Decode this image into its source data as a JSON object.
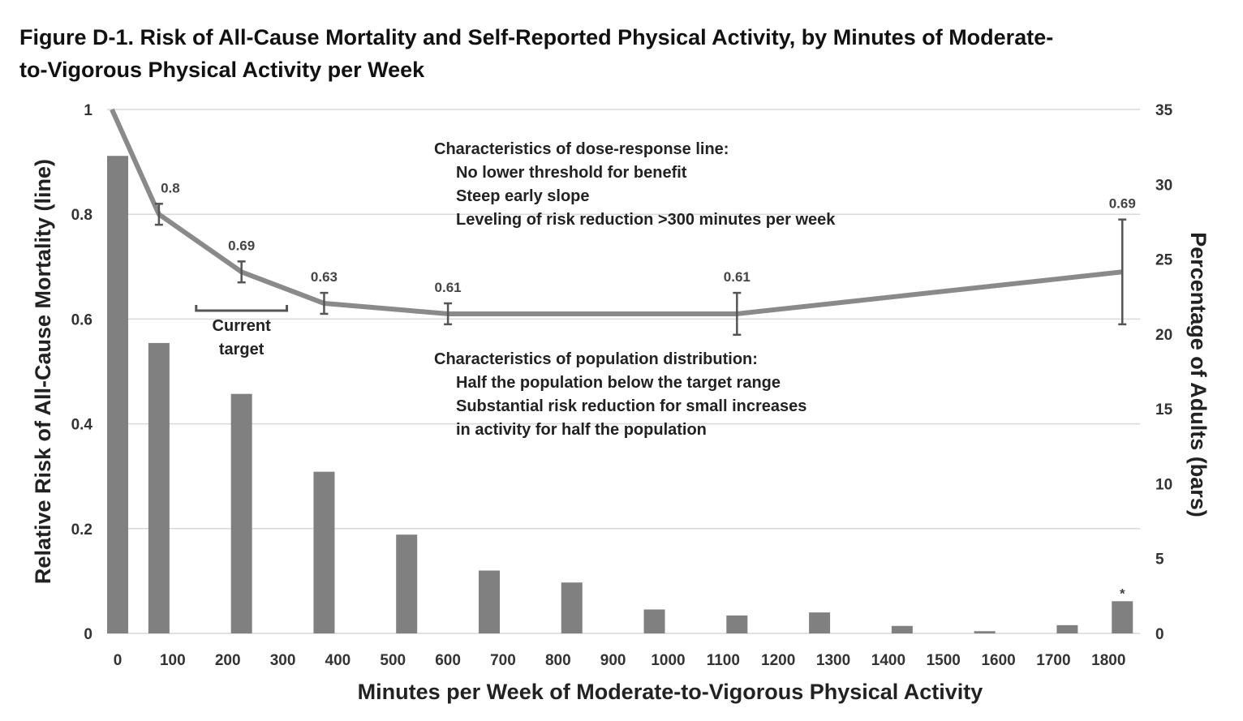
{
  "title_line1": "Figure D-1. Risk of All-Cause Mortality and Self-Reported Physical Activity, by Minutes of Moderate-",
  "title_line2": "to-Vigorous Physical Activity per Week",
  "chart_data": {
    "type": "bar+line",
    "x_ticks": [
      "0",
      "100",
      "200",
      "300",
      "400",
      "500",
      "600",
      "700",
      "800",
      "900",
      "1000",
      "1100",
      "1200",
      "1300",
      "1400",
      "1500",
      "1600",
      "1700",
      "1800"
    ],
    "xlabel": "Minutes per Week of Moderate-to-Vigorous Physical Activity",
    "ylabel_left": "Relative Risk of All-Cause Mortality (line)",
    "ylabel_right": "Percentage of Adults (bars)",
    "ylim_left": [
      0,
      1
    ],
    "yticks_left": [
      "0",
      "0.2",
      "0.4",
      "0.6",
      "0.8",
      "1"
    ],
    "ylim_right": [
      0,
      35
    ],
    "yticks_right": [
      "0",
      "5",
      "10",
      "15",
      "20",
      "25",
      "30",
      "35"
    ],
    "grid": true,
    "bars": {
      "name": "Percentage of Adults",
      "x": [
        0,
        75,
        225,
        375,
        525,
        675,
        825,
        975,
        1125,
        1275,
        1425,
        1575,
        1725,
        1825
      ],
      "values": [
        31.9,
        19.4,
        16.0,
        10.8,
        6.6,
        4.2,
        3.4,
        1.6,
        1.2,
        1.4,
        0.5,
        0.15,
        0.55,
        2.15
      ],
      "annotations": [
        {
          "bar_index": 13,
          "text": "*"
        }
      ]
    },
    "line": {
      "name": "Relative Risk",
      "x": [
        0,
        75,
        225,
        375,
        600,
        1125,
        1825
      ],
      "y": [
        1.0,
        0.8,
        0.69,
        0.63,
        0.61,
        0.61,
        0.69
      ],
      "labels": [
        "",
        "0.8",
        "0.69",
        "0.63",
        "0.61",
        "0.61",
        "0.69"
      ],
      "error_low": [
        null,
        0.78,
        0.67,
        0.61,
        0.59,
        0.57,
        0.59
      ],
      "error_high": [
        null,
        0.82,
        0.71,
        0.65,
        0.63,
        0.65,
        0.79
      ]
    },
    "target_bracket": {
      "x_start": 150,
      "x_end": 300,
      "label_line1": "Current",
      "label_line2": "target"
    },
    "annotations": {
      "dose_response": [
        "Characteristics of dose-response line:",
        "No lower threshold for benefit",
        "Steep early slope",
        "Leveling of risk reduction >300 minutes per week"
      ],
      "population": [
        "Characteristics of population distribution:",
        "Half the population below the target range",
        "Substantial risk reduction for small increases",
        "in activity for half the population"
      ]
    }
  },
  "colors": {
    "bars": "#808080",
    "line": "#8a8a8a",
    "grid": "#d9d9d9",
    "errorbar": "#555555"
  }
}
